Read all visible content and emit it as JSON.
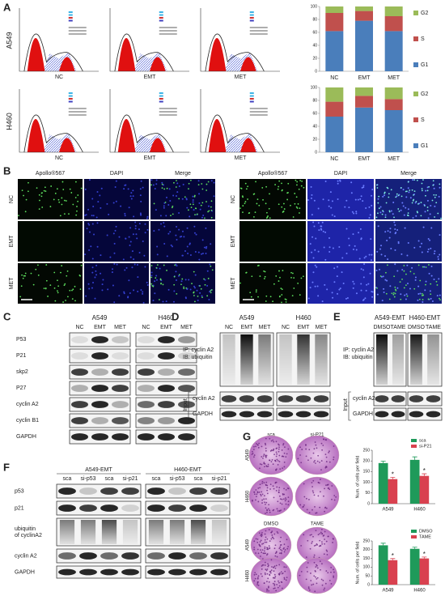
{
  "panels": {
    "A": {
      "label": "A",
      "rows": [
        {
          "cell_line": "A549",
          "flow_labels": [
            "NC",
            "EMT",
            "MET"
          ]
        },
        {
          "cell_line": "H460",
          "flow_labels": [
            "NC",
            "EMT",
            "MET"
          ]
        }
      ],
      "charts": [
        {
          "type": "bar",
          "stacked": true,
          "categories": [
            "NC",
            "EMT",
            "MET"
          ],
          "series": [
            {
              "name": "G1",
              "color": "#4a7ebb",
              "values": [
                62,
                78,
                62
              ]
            },
            {
              "name": "S",
              "color": "#c0504d",
              "values": [
                28,
                15,
                23
              ]
            },
            {
              "name": "G2",
              "color": "#9bbb59",
              "values": [
                10,
                7,
                15
              ]
            }
          ],
          "ylim": [
            0,
            100
          ],
          "yticks": [
            0,
            20,
            40,
            60,
            80,
            100
          ]
        },
        {
          "type": "bar",
          "stacked": true,
          "categories": [
            "NC",
            "EMT",
            "MET"
          ],
          "series": [
            {
              "name": "G1",
              "color": "#4a7ebb",
              "values": [
                55,
                69,
                65
              ]
            },
            {
              "name": "S",
              "color": "#c0504d",
              "values": [
                23,
                18,
                17
              ]
            },
            {
              "name": "G2",
              "color": "#9bbb59",
              "values": [
                22,
                13,
                18
              ]
            }
          ],
          "ylim": [
            0,
            100
          ],
          "yticks": [
            0,
            20,
            40,
            60,
            80,
            100
          ]
        }
      ]
    },
    "B": {
      "label": "B",
      "groups": [
        {
          "columns": [
            "Apollo®567",
            "DAPI",
            "Merge"
          ],
          "rows": [
            "NC",
            "EMT",
            "MET"
          ]
        },
        {
          "columns": [
            "Apollo®567",
            "DAPI",
            "Merge"
          ],
          "rows": [
            "NC",
            "EMT",
            "MET"
          ]
        }
      ]
    },
    "C": {
      "label": "C",
      "groups": [
        {
          "cell_line": "A549",
          "lanes": [
            "NC",
            "EMT",
            "MET"
          ]
        },
        {
          "cell_line": "H460",
          "lanes": [
            "NC",
            "EMT",
            "MET"
          ]
        }
      ],
      "proteins": [
        "P53",
        "P21",
        "skp2",
        "P27",
        "cyclin A2",
        "cyclin B1",
        "GAPDH"
      ]
    },
    "D": {
      "label": "D",
      "groups": [
        {
          "cell_line": "A549",
          "lanes": [
            "NC",
            "EMT",
            "MET"
          ]
        },
        {
          "cell_line": "H460",
          "lanes": [
            "NC",
            "EMT",
            "MET"
          ]
        }
      ],
      "ip_lines": [
        "IP: cyclin A2",
        "IB: ubiquitin"
      ],
      "input_label": "Input",
      "input_proteins": [
        "cyclin A2",
        "GAPDH"
      ]
    },
    "E": {
      "label": "E",
      "groups": [
        {
          "cell_line": "A549-EMT",
          "lanes": [
            "DMSO",
            "TAME"
          ]
        },
        {
          "cell_line": "H460-EMT",
          "lanes": [
            "DMSO",
            "TAME"
          ]
        }
      ],
      "ip_lines": [
        "IP: cyclin A2",
        "IB: ubiquitin"
      ],
      "input_label": "Input",
      "input_proteins": [
        "cyclin A2",
        "GAPDH"
      ]
    },
    "F": {
      "label": "F",
      "groups": [
        {
          "cell_line": "A549-EMT",
          "lanes": [
            "sca",
            "si-p53",
            "sca",
            "si-p21"
          ]
        },
        {
          "cell_line": "H460-EMT",
          "lanes": [
            "sca",
            "si-p53",
            "sca",
            "si-p21"
          ]
        }
      ],
      "proteins": [
        "p53",
        "p21",
        [
          "ubiquitin",
          "of cyclinA2"
        ],
        "cyclin A2",
        "GAPDH"
      ]
    },
    "G": {
      "label": "G",
      "groups": [
        {
          "conditions": [
            "sca",
            "si-P21"
          ],
          "rows": [
            "A549",
            "H460"
          ],
          "chart": {
            "type": "bar",
            "y_label": "Num. of cells per field",
            "categories": [
              "A549",
              "H460"
            ],
            "series": [
              {
                "name": "sca",
                "color": "#1f9a5a",
                "values": [
                  190,
                  205
                ],
                "errors": [
                  9,
                  14
                ]
              },
              {
                "name": "si-P21",
                "color": "#d9414f",
                "values": [
                  115,
                  130
                ],
                "errors": [
                  8,
                  10
                ],
                "significance": [
                  "*",
                  "*"
                ]
              }
            ],
            "ylim": [
              0,
              250
            ],
            "yticks": [
              0,
              50,
              100,
              150,
              200,
              250
            ]
          }
        },
        {
          "conditions": [
            "DMSO",
            "TAME"
          ],
          "rows": [
            "A549",
            "H460"
          ],
          "chart": {
            "type": "bar",
            "y_label": "Num. of cells per field",
            "categories": [
              "A549",
              "H460"
            ],
            "series": [
              {
                "name": "DMSO",
                "color": "#1f9a5a",
                "values": [
                  225,
                  205
                ],
                "errors": [
                  12,
                  9
                ]
              },
              {
                "name": "TAME",
                "color": "#d9414f",
                "values": [
                  140,
                  150
                ],
                "errors": [
                  9,
                  8
                ],
                "significance": [
                  "*",
                  "*"
                ]
              }
            ],
            "ylim": [
              0,
              250
            ],
            "yticks": [
              0,
              50,
              100,
              150,
              200,
              250
            ]
          }
        }
      ]
    }
  }
}
